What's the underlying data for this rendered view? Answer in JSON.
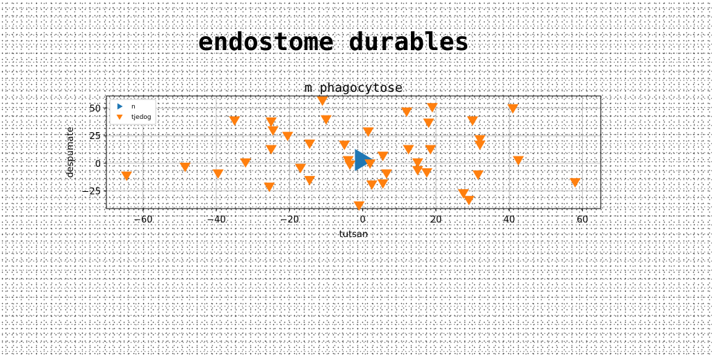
{
  "page": {
    "title": "endostome durables"
  },
  "chart_data": {
    "type": "scatter",
    "title": "m phagocytose",
    "xlabel": "tutsan",
    "ylabel": "despumate",
    "xlim": [
      -70,
      65
    ],
    "ylim": [
      -41,
      61
    ],
    "xticks": [
      -60,
      -40,
      -20,
      0,
      20,
      40,
      60
    ],
    "yticks": [
      -25,
      0,
      25,
      50
    ],
    "grid": true,
    "legend_position": "upper-left",
    "series": [
      {
        "name": "n",
        "marker": "triangle-right",
        "color": "#1f77b4",
        "points": [
          [
            0,
            3
          ]
        ]
      },
      {
        "name": "tjedog",
        "marker": "triangle-down",
        "color": "#ff7f0e",
        "points": [
          [
            -64.5,
            -11
          ],
          [
            -48.5,
            -3
          ],
          [
            -39.5,
            -9
          ],
          [
            -35,
            39
          ],
          [
            -32,
            1
          ],
          [
            -25,
            38
          ],
          [
            -24.5,
            30
          ],
          [
            -25,
            13
          ],
          [
            -25.5,
            -21
          ],
          [
            -20.5,
            25
          ],
          [
            -17,
            -4
          ],
          [
            -14.5,
            18
          ],
          [
            -14.5,
            -15
          ],
          [
            -11,
            57
          ],
          [
            -10,
            40
          ],
          [
            -5,
            17
          ],
          [
            -4,
            3
          ],
          [
            -3.5,
            -1
          ],
          [
            -1,
            -38
          ],
          [
            1.5,
            29
          ],
          [
            2,
            0
          ],
          [
            2.5,
            -19
          ],
          [
            5.5,
            -18
          ],
          [
            5.5,
            7
          ],
          [
            6.5,
            -9
          ],
          [
            12,
            47
          ],
          [
            12.5,
            13
          ],
          [
            15,
            1
          ],
          [
            15,
            -6
          ],
          [
            17.5,
            -8
          ],
          [
            18,
            37
          ],
          [
            18.5,
            13
          ],
          [
            19,
            51
          ],
          [
            27.5,
            -27
          ],
          [
            29,
            -33
          ],
          [
            30,
            39
          ],
          [
            31.5,
            -10
          ],
          [
            32,
            22
          ],
          [
            32,
            17
          ],
          [
            41,
            50
          ],
          [
            42.5,
            3
          ],
          [
            58,
            -17
          ]
        ]
      }
    ]
  }
}
